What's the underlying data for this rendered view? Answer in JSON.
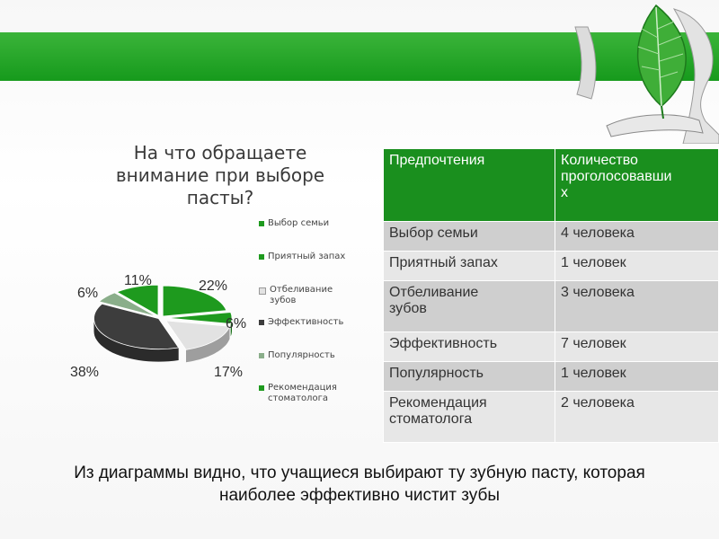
{
  "chart_data": {
    "type": "pie",
    "title": "На что обращаете внимание при выборе пасты?",
    "title_lines": [
      "На что обращаете",
      "внимание при выборе",
      "пасты?"
    ],
    "categories": [
      "Выбор семьи",
      "Приятный запах",
      "Отбеливание зубов",
      "Эффективность",
      "Популярность",
      "Рекомендация стоматолога"
    ],
    "legend_lines": [
      [
        "Выбор семьи"
      ],
      [
        "Приятный запах"
      ],
      [
        "Отбеливание",
        "зубов"
      ],
      [
        "Эффективность"
      ],
      [
        "Популярность"
      ],
      [
        "Рекомендация",
        "стоматолога"
      ]
    ],
    "values": [
      22,
      6,
      17,
      38,
      6,
      11
    ],
    "value_labels": [
      "22%",
      "6%",
      "17%",
      "38%",
      "6%",
      "11%"
    ],
    "colors": [
      "#1e9a1e",
      "#1e9a1e",
      "#e2e2e2",
      "#3d3d3d",
      "#8aae8a",
      "#1e9a1e"
    ],
    "legend_position": "right"
  },
  "table": {
    "headers": [
      "Предпочтения",
      "Количество проголосовавших"
    ],
    "header_lines": [
      [
        "Предпочтения"
      ],
      [
        "Количество",
        "проголосовавши",
        "х"
      ]
    ],
    "rows": [
      {
        "pref": [
          "Выбор семьи"
        ],
        "count": "4 человека"
      },
      {
        "pref": [
          "Приятный запах"
        ],
        "count": "1 человек"
      },
      {
        "pref": [
          "Отбеливание",
          "зубов"
        ],
        "count": "3 человека"
      },
      {
        "pref": [
          "Эффективность"
        ],
        "count": "7 человек"
      },
      {
        "pref": [
          "Популярность"
        ],
        "count": "1 человек"
      },
      {
        "pref": [
          "Рекомендация",
          "стоматолога"
        ],
        "count": "2 человека"
      }
    ]
  },
  "conclusion_lines": [
    "Из диаграммы видно, что учащиеся выбирают ту зубную пасту, которая",
    "наиболее эффективно чистит зубы"
  ],
  "colors": {
    "band": "#1f9f22",
    "header_fill": "#1a8f1e",
    "row_odd": "#cfcfcf",
    "row_even": "#e7e7e7"
  }
}
